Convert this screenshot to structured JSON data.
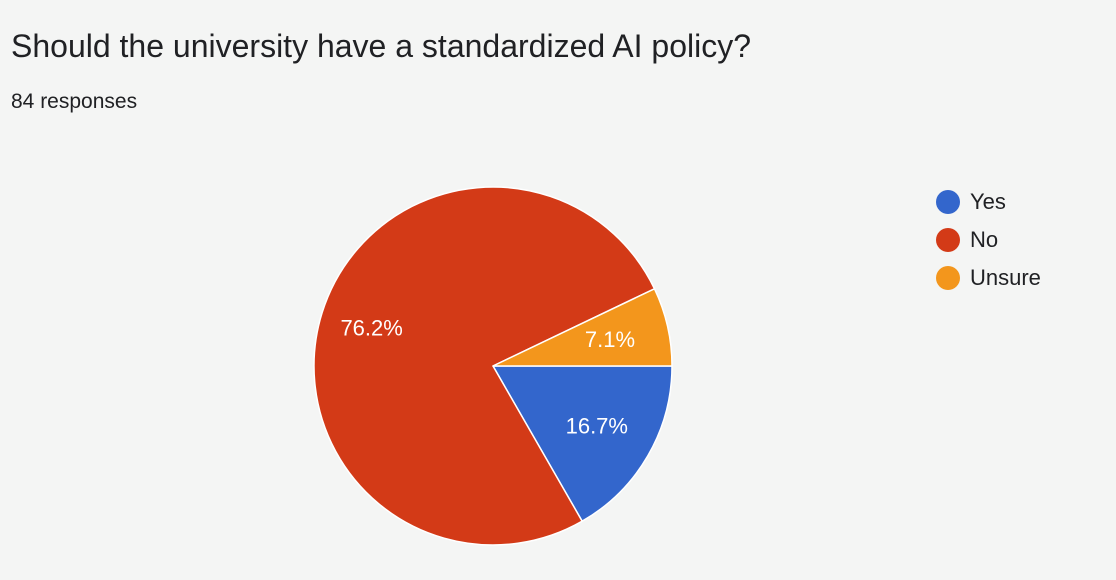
{
  "question": "Should the university have a standardized AI policy?",
  "response_count": "84 responses",
  "chart_data": {
    "type": "pie",
    "title": "Should the university have a standardized AI policy?",
    "subtitle": "84 responses",
    "legend_position": "right",
    "slices": [
      {
        "label": "Yes",
        "value": 16.7,
        "display": "16.7%",
        "color": "#3366cc"
      },
      {
        "label": "No",
        "value": 76.2,
        "display": "76.2%",
        "color": "#d33a17"
      },
      {
        "label": "Unsure",
        "value": 7.1,
        "display": "7.1%",
        "color": "#f3961c"
      }
    ]
  }
}
